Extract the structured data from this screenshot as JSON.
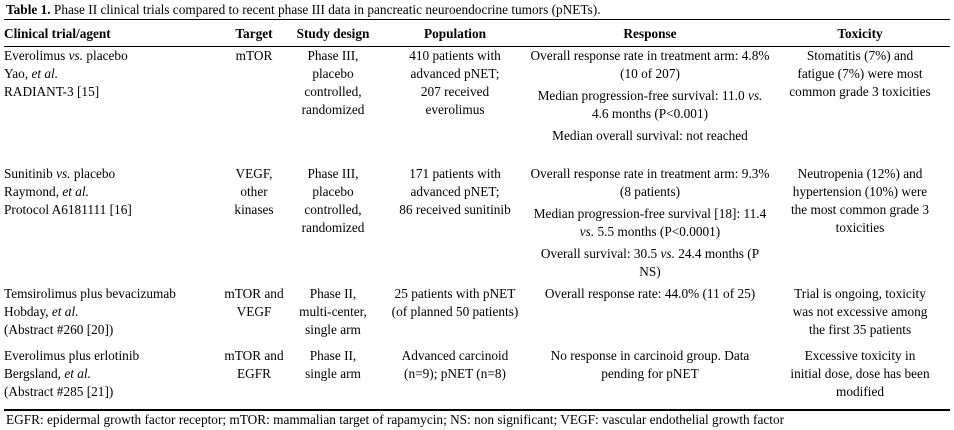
{
  "caption": {
    "label": "Table 1.",
    "text": " Phase II clinical trials compared to recent phase III data in pancreatic neuroendocrine tumors (pNETs)."
  },
  "headers": {
    "agent": "Clinical trial/agent",
    "target": "Target",
    "design": "Study design",
    "population": "Population",
    "response": "Response",
    "toxicity": "Toxicity"
  },
  "rows": [
    {
      "agent": "Everolimus vs. placebo\nYao, et al.\nRADIANT-3 [15]",
      "target": "mTOR",
      "design": "Phase III,\nplacebo\ncontrolled,\nrandomized",
      "population": "410 patients with\nadvanced pNET;\n207 received\neverolimus",
      "response": [
        "Overall response rate in treatment arm:\n4.8% (10 of 207)",
        "Median progression-free survival:\n11.0 vs. 4.6 months (P<0.001)",
        "Median overall survival: not reached"
      ],
      "toxicity": "Stomatitis (7%) and\nfatigue (7%) were most\ncommon grade 3 toxicities"
    },
    {
      "agent": "Sunitinib vs. placebo\nRaymond, et al.\nProtocol A6181111 [16]",
      "target": "VEGF,\nother\nkinases",
      "design": "Phase III,\nplacebo\ncontrolled,\nrandomized",
      "population": "171 patients with\nadvanced pNET;\n86 received sunitinib",
      "response": [
        "Overall response rate in treatment arm:\n9.3% (8 patients)",
        "Median progression-free survival [18]:\n11.4 vs. 5.5 months (P<0.0001)",
        "Overall survival:\n30.5 vs. 24.4 months (P NS)"
      ],
      "toxicity": "Neutropenia (12%) and\nhypertension (10%) were\nthe most common grade 3\ntoxicities"
    },
    {
      "agent": "Temsirolimus plus bevacizumab\nHobday, et al.\n(Abstract #260 [20])",
      "target": "mTOR and\nVEGF",
      "design": "Phase II,\nmulti-center,\nsingle arm",
      "population": "25 patients with pNET\n(of planned 50 patients)",
      "response": [
        "Overall response rate:\n44.0% (11 of 25)"
      ],
      "toxicity": "Trial is ongoing, toxicity\nwas not excessive among\nthe first 35 patients"
    },
    {
      "agent": "Everolimus plus erlotinib\nBergsland, et al.\n(Abstract #285 [21])",
      "target": "mTOR and\nEGFR",
      "design": "Phase II,\nsingle arm",
      "population": "Advanced carcinoid\n(n=9); pNET (n=8)",
      "response": [
        "No response in carcinoid group.\nData pending for pNET"
      ],
      "toxicity": "Excessive toxicity in\ninitial dose, dose has been\nmodified"
    }
  ],
  "footnote": "EGFR: epidermal growth factor receptor; mTOR: mammalian target of rapamycin; NS: non significant; VEGF: vascular endothelial growth factor"
}
